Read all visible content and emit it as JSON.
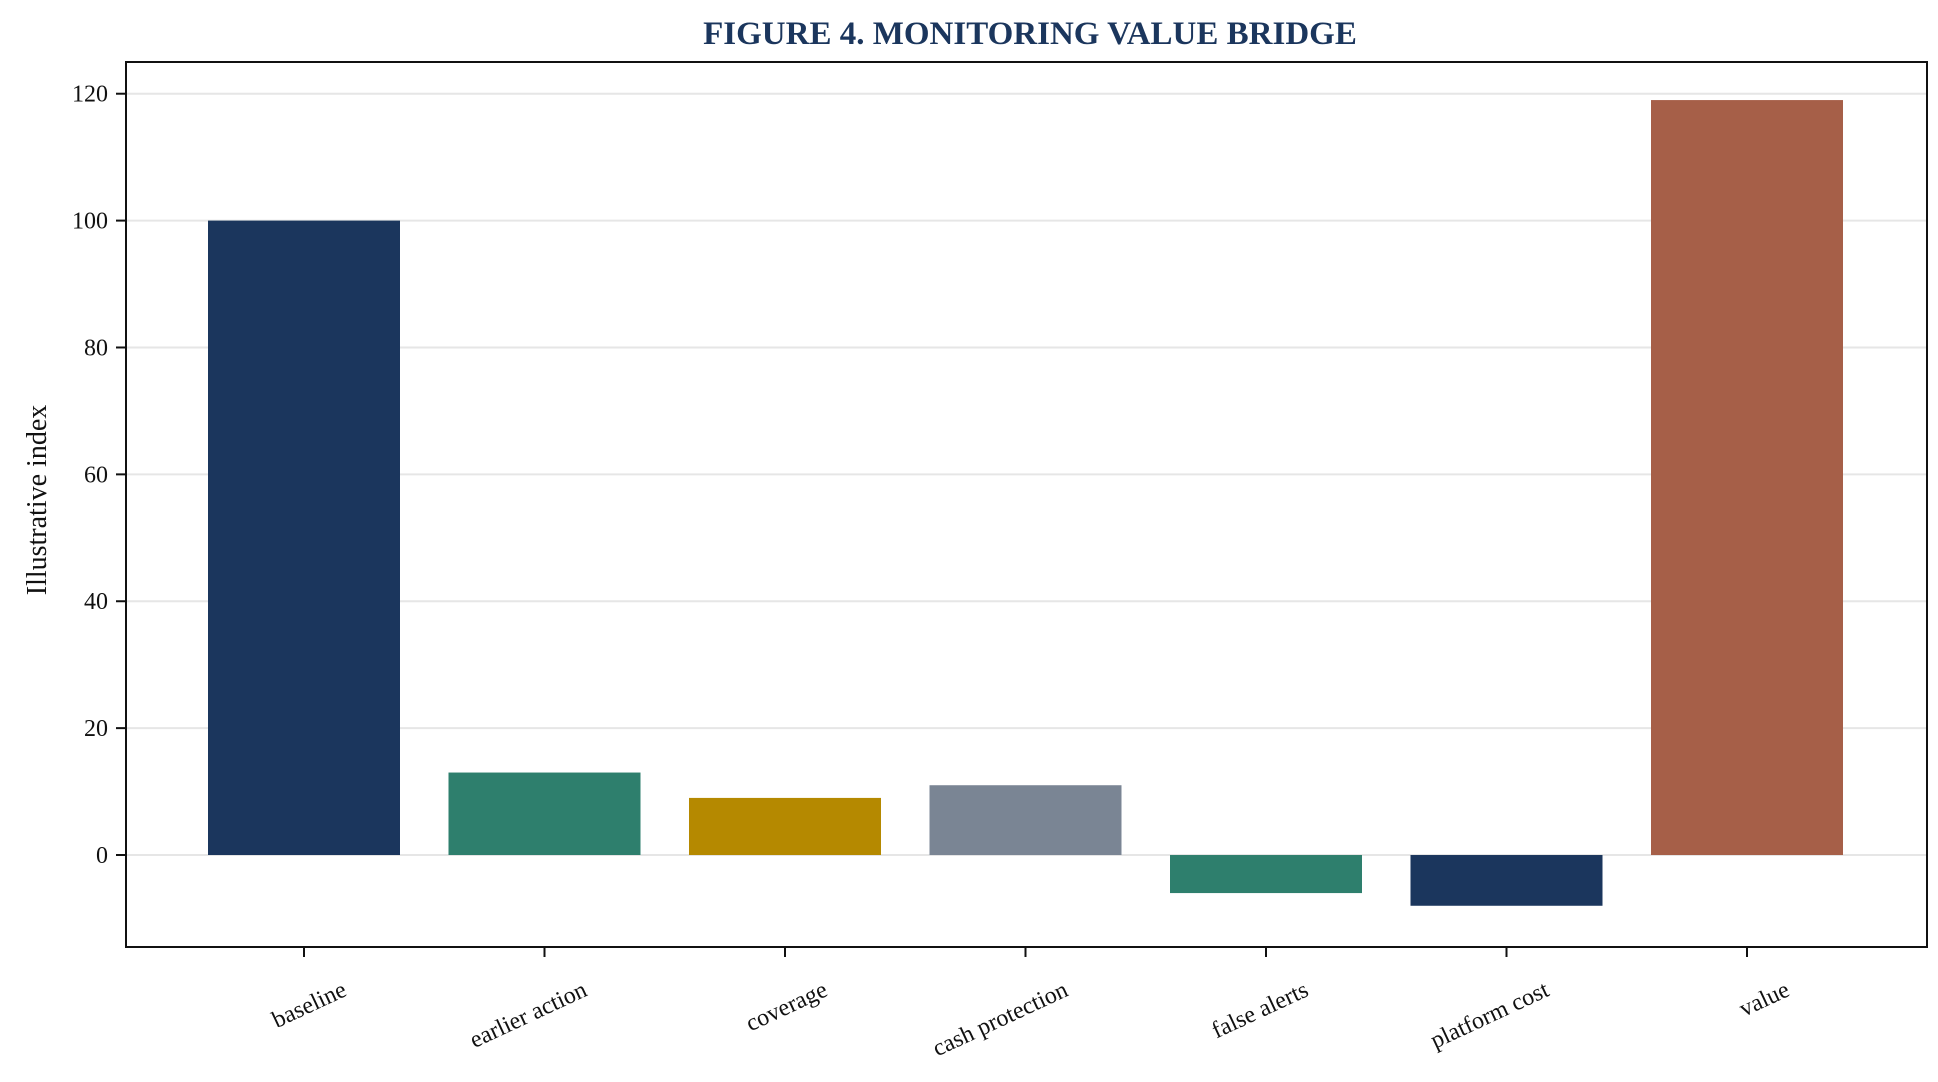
{
  "chart_data": {
    "type": "bar",
    "title": "FIGURE 4. MONITORING VALUE BRIDGE",
    "xlabel": "",
    "ylabel": "Illustrative index",
    "categories": [
      "baseline",
      "earlier action",
      "coverage",
      "cash protection",
      "false alerts",
      "platform cost",
      "value"
    ],
    "values": [
      100,
      13,
      9,
      11,
      -6,
      -8,
      119
    ],
    "colors": [
      "#1b365d",
      "#2e7f6d",
      "#b58900",
      "#7a8594",
      "#2e7f6d",
      "#1b365d",
      "#a65f48"
    ],
    "ylim": [
      -14.5,
      125
    ],
    "yticks": [
      0,
      20,
      40,
      60,
      80,
      100,
      120
    ],
    "grid": "horizontal",
    "legend": "none"
  }
}
